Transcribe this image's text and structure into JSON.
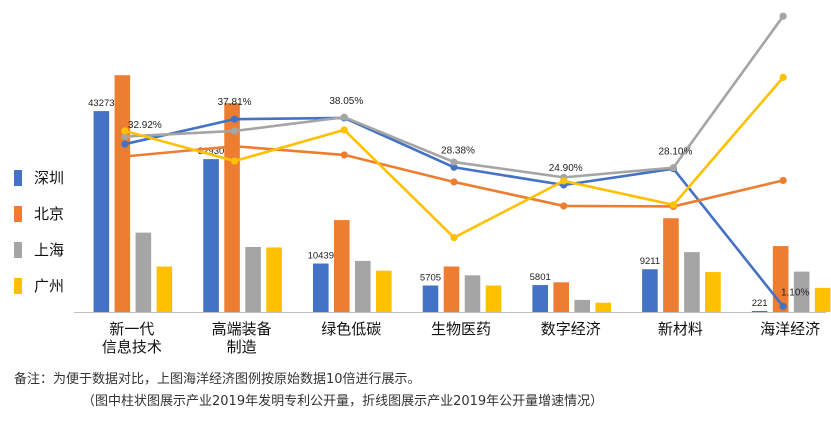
{
  "chart_data": {
    "type": "bar",
    "categories": [
      [
        "新一代",
        "信息技术"
      ],
      [
        "高端装备",
        "制造"
      ],
      [
        "绿色低碳"
      ],
      [
        "生物医药"
      ],
      [
        "数字经济"
      ],
      [
        "新材料"
      ],
      [
        "海洋经济"
      ]
    ],
    "series": [
      {
        "name": "深圳",
        "color": "#4472c4",
        "values": [
          43273,
          32930,
          10439,
          5705,
          5801,
          9211,
          221
        ],
        "bar_labels": [
          "43273",
          "32930",
          "10439",
          "5705",
          "5801",
          "9211",
          "221"
        ]
      },
      {
        "name": "北京",
        "color": "#ed7d31",
        "values": [
          51000,
          45000,
          19800,
          9800,
          6400,
          20200,
          14200
        ],
        "bar_labels": []
      },
      {
        "name": "上海",
        "color": "#a5a5a5",
        "values": [
          17100,
          14000,
          11000,
          7900,
          2600,
          12900,
          8700
        ],
        "bar_labels": []
      },
      {
        "name": "广州",
        "color": "#ffc000",
        "values": [
          9800,
          13900,
          8900,
          5700,
          2000,
          8600,
          5200
        ],
        "bar_labels": []
      }
    ],
    "line_series": [
      {
        "name": "深圳",
        "color": "#4472c4",
        "values": [
          32.92,
          37.81,
          38.05,
          28.38,
          24.9,
          28.1,
          1.1
        ],
        "labels": [
          "32.92%",
          "37.81%",
          "38.05%",
          "28.38%",
          "24.90%",
          "28.10%",
          "1.10%"
        ]
      },
      {
        "name": "北京",
        "color": "#ed7d31",
        "values": [
          30.5,
          32.5,
          30.8,
          25.5,
          20.8,
          20.7,
          25.8
        ]
      },
      {
        "name": "上海",
        "color": "#a5a5a5",
        "values": [
          34.4,
          35.5,
          38.2,
          29.4,
          26.4,
          28.3,
          58.0
        ]
      },
      {
        "name": "广州",
        "color": "#ffc000",
        "values": [
          35.5,
          29.6,
          35.7,
          14.6,
          25.7,
          21.0,
          46.0
        ]
      }
    ],
    "legend": {
      "placement": "left",
      "entries": [
        "深圳",
        "北京",
        "上海",
        "广州"
      ]
    },
    "bar_axis_max": 56000,
    "line_axis_range": [
      0,
      60
    ],
    "grid": false
  },
  "notes": {
    "line1": "备注：为便于数据对比，上图海洋经济图例按原始数据10倍进行展示。",
    "line2": "（图中柱状图展示产业2019年发明专利公开量，折线图展示产业2019年公开量增速情况）"
  }
}
